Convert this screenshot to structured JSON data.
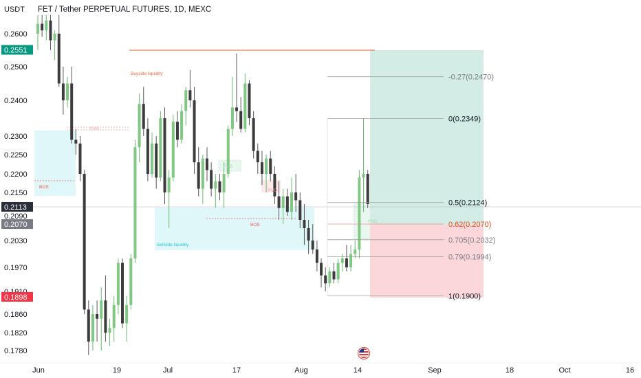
{
  "header": {
    "currency": "USDT",
    "symbol_title": "FET / Tether PERPETUAL FUTURES, 1D, MEXC"
  },
  "colors": {
    "up": "#81c784",
    "down": "#3c3c3c",
    "tag_green": "#089981",
    "tag_red": "#f23645",
    "tag_dark": "#2a2e39",
    "tag_gray": "#787b86",
    "profit_zone": "#d3ece6",
    "loss_zone": "#fbd7da",
    "fvg_zone": "#e0f7fa"
  },
  "price_axis": {
    "ticks": [
      "0.2600",
      "0.2500",
      "0.2400",
      "0.2300",
      "0.2250",
      "0.2200",
      "0.2150",
      "0.2090",
      "0.2030",
      "0.1970",
      "0.1910",
      "0.1860",
      "0.1820",
      "0.1780"
    ],
    "tags": [
      {
        "text": "0.2551",
        "value": 0.2551,
        "color": "green"
      },
      {
        "text": "0.2113",
        "value": 0.2113,
        "color": "dark"
      },
      {
        "text": "0.2070",
        "value": 0.207,
        "color": "gray"
      },
      {
        "text": "0.1898",
        "value": 0.1898,
        "color": "red"
      }
    ]
  },
  "time_axis": {
    "labels": [
      "Jun",
      "19",
      "Jul",
      "17",
      "Aug",
      "14",
      "Sep",
      "18",
      "Oct",
      "16"
    ]
  },
  "annotations": {
    "buyside": "Buyside liquidity",
    "sellside": "Sellside liquidity",
    "fvg": "FVG",
    "bos": "BOS"
  },
  "fib_levels": [
    {
      "label": "-0.27(0.2470)",
      "value": 0.247
    },
    {
      "label": "0(0.2349)",
      "value": 0.2349
    },
    {
      "label": "0.5(0.2124)",
      "value": 0.2124
    },
    {
      "label": "0.62(0.2070)",
      "value": 0.207
    },
    {
      "label": "0.705(0.2032)",
      "value": 0.2032
    },
    {
      "label": "0.79(0.1994)",
      "value": 0.1994
    },
    {
      "label": "1(0.1900)",
      "value": 0.19
    }
  ],
  "chart_data": {
    "type": "candlestick",
    "title": "FET / Tether PERPETUAL FUTURES, 1D, MEXC",
    "ylabel": "USDT",
    "ylim": [
      0.1765,
      0.2665
    ],
    "x_ticks": [
      "Jun",
      "19",
      "Jul",
      "17",
      "Aug",
      "14",
      "Sep",
      "18",
      "Oct",
      "16"
    ],
    "last_price": 0.2113,
    "trade_setup": {
      "entry": 0.207,
      "target": 0.2551,
      "stop": 0.1898
    },
    "candles": [
      {
        "o": 0.26,
        "h": 0.266,
        "l": 0.255,
        "c": 0.263
      },
      {
        "o": 0.263,
        "h": 0.266,
        "l": 0.259,
        "c": 0.261
      },
      {
        "o": 0.261,
        "h": 0.266,
        "l": 0.258,
        "c": 0.264
      },
      {
        "o": 0.264,
        "h": 0.266,
        "l": 0.255,
        "c": 0.258
      },
      {
        "o": 0.258,
        "h": 0.261,
        "l": 0.252,
        "c": 0.26
      },
      {
        "o": 0.26,
        "h": 0.266,
        "l": 0.244,
        "c": 0.245
      },
      {
        "o": 0.245,
        "h": 0.25,
        "l": 0.236,
        "c": 0.24
      },
      {
        "o": 0.24,
        "h": 0.247,
        "l": 0.238,
        "c": 0.245
      },
      {
        "o": 0.245,
        "h": 0.25,
        "l": 0.228,
        "c": 0.229
      },
      {
        "o": 0.229,
        "h": 0.232,
        "l": 0.225,
        "c": 0.228
      },
      {
        "o": 0.228,
        "h": 0.23,
        "l": 0.218,
        "c": 0.22
      },
      {
        "o": 0.22,
        "h": 0.221,
        "l": 0.186,
        "c": 0.187
      },
      {
        "o": 0.187,
        "h": 0.189,
        "l": 0.177,
        "c": 0.18
      },
      {
        "o": 0.18,
        "h": 0.188,
        "l": 0.178,
        "c": 0.186
      },
      {
        "o": 0.186,
        "h": 0.189,
        "l": 0.18,
        "c": 0.185
      },
      {
        "o": 0.185,
        "h": 0.192,
        "l": 0.178,
        "c": 0.189
      },
      {
        "o": 0.189,
        "h": 0.195,
        "l": 0.18,
        "c": 0.182
      },
      {
        "o": 0.182,
        "h": 0.185,
        "l": 0.179,
        "c": 0.183
      },
      {
        "o": 0.183,
        "h": 0.19,
        "l": 0.18,
        "c": 0.188
      },
      {
        "o": 0.188,
        "h": 0.199,
        "l": 0.186,
        "c": 0.198
      },
      {
        "o": 0.198,
        "h": 0.199,
        "l": 0.183,
        "c": 0.184
      },
      {
        "o": 0.184,
        "h": 0.19,
        "l": 0.18,
        "c": 0.188
      },
      {
        "o": 0.188,
        "h": 0.2,
        "l": 0.187,
        "c": 0.199
      },
      {
        "o": 0.199,
        "h": 0.229,
        "l": 0.198,
        "c": 0.227
      },
      {
        "o": 0.227,
        "h": 0.242,
        "l": 0.223,
        "c": 0.239
      },
      {
        "o": 0.239,
        "h": 0.244,
        "l": 0.23,
        "c": 0.232
      },
      {
        "o": 0.232,
        "h": 0.235,
        "l": 0.218,
        "c": 0.22
      },
      {
        "o": 0.22,
        "h": 0.231,
        "l": 0.219,
        "c": 0.228
      },
      {
        "o": 0.228,
        "h": 0.23,
        "l": 0.216,
        "c": 0.219
      },
      {
        "o": 0.219,
        "h": 0.237,
        "l": 0.218,
        "c": 0.235
      },
      {
        "o": 0.235,
        "h": 0.238,
        "l": 0.212,
        "c": 0.215
      },
      {
        "o": 0.215,
        "h": 0.221,
        "l": 0.206,
        "c": 0.219
      },
      {
        "o": 0.219,
        "h": 0.236,
        "l": 0.218,
        "c": 0.234
      },
      {
        "o": 0.234,
        "h": 0.237,
        "l": 0.227,
        "c": 0.229
      },
      {
        "o": 0.229,
        "h": 0.239,
        "l": 0.228,
        "c": 0.237
      },
      {
        "o": 0.237,
        "h": 0.244,
        "l": 0.233,
        "c": 0.243
      },
      {
        "o": 0.243,
        "h": 0.249,
        "l": 0.238,
        "c": 0.24
      },
      {
        "o": 0.24,
        "h": 0.244,
        "l": 0.22,
        "c": 0.223
      },
      {
        "o": 0.223,
        "h": 0.227,
        "l": 0.214,
        "c": 0.216
      },
      {
        "o": 0.216,
        "h": 0.225,
        "l": 0.212,
        "c": 0.224
      },
      {
        "o": 0.224,
        "h": 0.227,
        "l": 0.218,
        "c": 0.221
      },
      {
        "o": 0.221,
        "h": 0.223,
        "l": 0.214,
        "c": 0.216
      },
      {
        "o": 0.216,
        "h": 0.22,
        "l": 0.211,
        "c": 0.218
      },
      {
        "o": 0.218,
        "h": 0.22,
        "l": 0.213,
        "c": 0.215
      },
      {
        "o": 0.215,
        "h": 0.223,
        "l": 0.211,
        "c": 0.22
      },
      {
        "o": 0.22,
        "h": 0.233,
        "l": 0.219,
        "c": 0.232
      },
      {
        "o": 0.232,
        "h": 0.247,
        "l": 0.23,
        "c": 0.238
      },
      {
        "o": 0.238,
        "h": 0.254,
        "l": 0.234,
        "c": 0.237
      },
      {
        "o": 0.237,
        "h": 0.241,
        "l": 0.231,
        "c": 0.232
      },
      {
        "o": 0.232,
        "h": 0.248,
        "l": 0.231,
        "c": 0.245
      },
      {
        "o": 0.245,
        "h": 0.246,
        "l": 0.233,
        "c": 0.235
      },
      {
        "o": 0.235,
        "h": 0.237,
        "l": 0.224,
        "c": 0.226
      },
      {
        "o": 0.226,
        "h": 0.228,
        "l": 0.22,
        "c": 0.223
      },
      {
        "o": 0.223,
        "h": 0.226,
        "l": 0.217,
        "c": 0.22
      },
      {
        "o": 0.22,
        "h": 0.225,
        "l": 0.215,
        "c": 0.224
      },
      {
        "o": 0.224,
        "h": 0.226,
        "l": 0.218,
        "c": 0.22
      },
      {
        "o": 0.22,
        "h": 0.222,
        "l": 0.212,
        "c": 0.214
      },
      {
        "o": 0.214,
        "h": 0.218,
        "l": 0.208,
        "c": 0.211
      },
      {
        "o": 0.211,
        "h": 0.216,
        "l": 0.207,
        "c": 0.214
      },
      {
        "o": 0.214,
        "h": 0.216,
        "l": 0.209,
        "c": 0.21
      },
      {
        "o": 0.21,
        "h": 0.219,
        "l": 0.208,
        "c": 0.215
      },
      {
        "o": 0.215,
        "h": 0.22,
        "l": 0.21,
        "c": 0.213
      },
      {
        "o": 0.213,
        "h": 0.215,
        "l": 0.206,
        "c": 0.208
      },
      {
        "o": 0.208,
        "h": 0.212,
        "l": 0.202,
        "c": 0.206
      },
      {
        "o": 0.206,
        "h": 0.208,
        "l": 0.2,
        "c": 0.203
      },
      {
        "o": 0.203,
        "h": 0.207,
        "l": 0.2,
        "c": 0.201
      },
      {
        "o": 0.201,
        "h": 0.203,
        "l": 0.196,
        "c": 0.198
      },
      {
        "o": 0.198,
        "h": 0.199,
        "l": 0.192,
        "c": 0.195
      },
      {
        "o": 0.195,
        "h": 0.197,
        "l": 0.191,
        "c": 0.193
      },
      {
        "o": 0.193,
        "h": 0.197,
        "l": 0.192,
        "c": 0.196
      },
      {
        "o": 0.196,
        "h": 0.198,
        "l": 0.193,
        "c": 0.194
      },
      {
        "o": 0.194,
        "h": 0.199,
        "l": 0.193,
        "c": 0.198
      },
      {
        "o": 0.198,
        "h": 0.2,
        "l": 0.196,
        "c": 0.199
      },
      {
        "o": 0.199,
        "h": 0.202,
        "l": 0.196,
        "c": 0.197
      },
      {
        "o": 0.197,
        "h": 0.202,
        "l": 0.196,
        "c": 0.2
      },
      {
        "o": 0.2,
        "h": 0.203,
        "l": 0.199,
        "c": 0.201
      },
      {
        "o": 0.201,
        "h": 0.221,
        "l": 0.199,
        "c": 0.219
      },
      {
        "o": 0.219,
        "h": 0.235,
        "l": 0.21,
        "c": 0.22
      },
      {
        "o": 0.22,
        "h": 0.221,
        "l": 0.211,
        "c": 0.212
      }
    ]
  }
}
